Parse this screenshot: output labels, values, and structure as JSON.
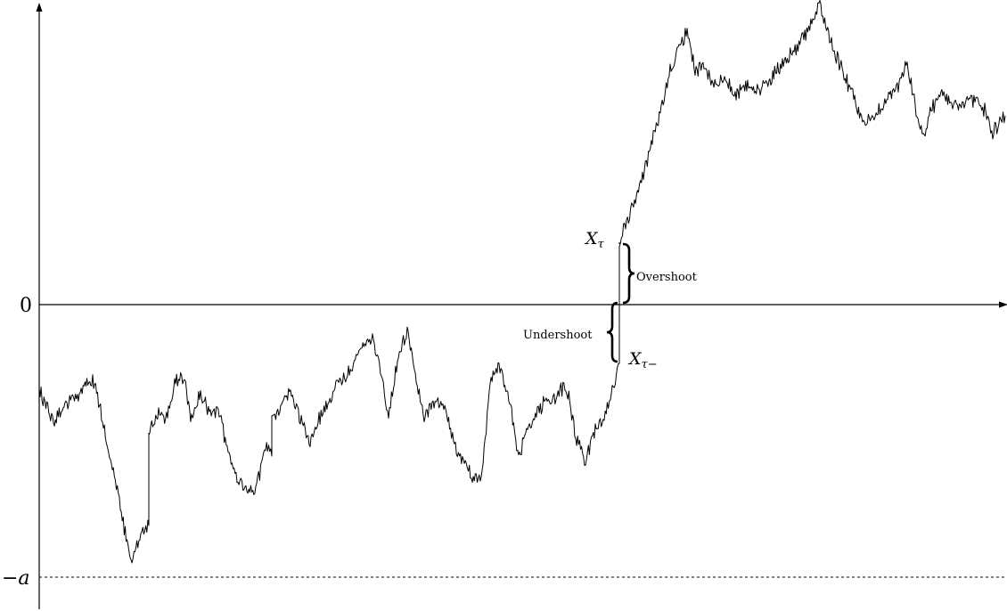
{
  "labels": {
    "zero": "0",
    "minus_a": "−a",
    "x_tau": "X",
    "x_tau_sub": "τ",
    "x_tau_minus": "X",
    "x_tau_minus_sub": "τ−",
    "overshoot": "Overshoot",
    "undershoot": "Undershoot"
  },
  "colors": {
    "line": "#000000",
    "background": "#ffffff"
  }
}
